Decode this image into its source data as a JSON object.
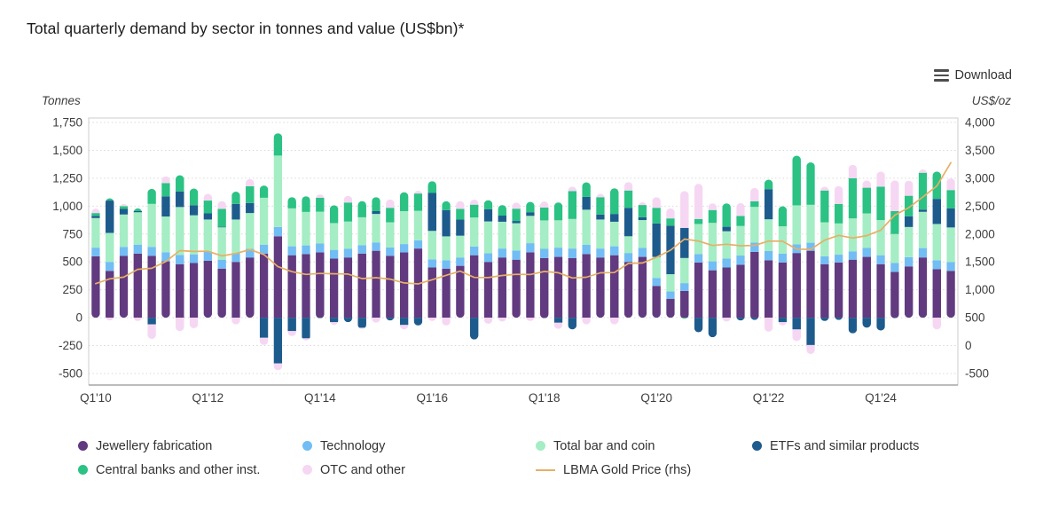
{
  "title": "Total quarterly demand by sector in tonnes and value (US$bn)*",
  "download_label": "Download",
  "axes": {
    "left_title": "Tonnes",
    "right_title": "US$/oz",
    "left_ticks": [
      "1,750",
      "1,500",
      "1,250",
      "1,000",
      "750",
      "500",
      "250",
      "0",
      "-250",
      "-500"
    ],
    "right_ticks": [
      "4,000",
      "3,500",
      "3,000",
      "2,500",
      "2,000",
      "1,500",
      "1,000",
      "500",
      "0",
      "-500"
    ],
    "x_tick_labels": [
      "Q1'10",
      "Q1'12",
      "Q1'14",
      "Q1'16",
      "Q1'18",
      "Q1'20",
      "Q1'22",
      "Q1'24"
    ],
    "x_tick_indices": [
      0,
      8,
      16,
      24,
      32,
      40,
      48,
      56
    ]
  },
  "chart_data": {
    "type": "bar",
    "subtype": "stacked-bars-with-line-overlay",
    "title": "Total quarterly demand by sector in tonnes and value (US$bn)*",
    "xlabel": "",
    "ylabel_left": "Tonnes",
    "ylabel_right": "US$/oz",
    "ylim_left": [
      -500,
      1750
    ],
    "ylim_right": [
      -500,
      4000
    ],
    "grid": "dotted-horizontal",
    "legend_position": "bottom",
    "categories": [
      "Q1'10",
      "Q2'10",
      "Q3'10",
      "Q4'10",
      "Q1'11",
      "Q2'11",
      "Q3'11",
      "Q4'11",
      "Q1'12",
      "Q2'12",
      "Q3'12",
      "Q4'12",
      "Q1'13",
      "Q2'13",
      "Q3'13",
      "Q4'13",
      "Q1'14",
      "Q2'14",
      "Q3'14",
      "Q4'14",
      "Q1'15",
      "Q2'15",
      "Q3'15",
      "Q4'15",
      "Q1'16",
      "Q2'16",
      "Q3'16",
      "Q4'16",
      "Q1'17",
      "Q2'17",
      "Q3'17",
      "Q4'17",
      "Q1'18",
      "Q2'18",
      "Q3'18",
      "Q4'18",
      "Q1'19",
      "Q2'19",
      "Q3'19",
      "Q4'19",
      "Q1'20",
      "Q2'20",
      "Q3'20",
      "Q4'20",
      "Q1'21",
      "Q2'21",
      "Q3'21",
      "Q4'21",
      "Q1'22",
      "Q2'22",
      "Q3'22",
      "Q4'22",
      "Q1'23",
      "Q2'23",
      "Q3'23",
      "Q4'23",
      "Q1'24",
      "Q2'24",
      "Q3'24",
      "Q4'24",
      "Q1'25",
      "Q2'25"
    ],
    "series": [
      {
        "key": "jewellery",
        "name": "Jewellery fabrication",
        "type": "bar",
        "color": "#613a80",
        "values": [
          550,
          420,
          555,
          575,
          555,
          505,
          480,
          490,
          510,
          440,
          500,
          540,
          575,
          730,
          560,
          570,
          585,
          530,
          540,
          575,
          600,
          555,
          585,
          620,
          450,
          440,
          465,
          560,
          500,
          540,
          520,
          585,
          535,
          545,
          535,
          570,
          540,
          560,
          500,
          545,
          285,
          170,
          240,
          495,
          425,
          450,
          475,
          590,
          515,
          495,
          580,
          600,
          480,
          495,
          520,
          545,
          480,
          410,
          460,
          540,
          435,
          420
        ]
      },
      {
        "key": "technology",
        "name": "Technology",
        "type": "bar",
        "color": "#72bdf4",
        "values": [
          78,
          80,
          80,
          80,
          80,
          82,
          82,
          78,
          80,
          80,
          80,
          78,
          80,
          83,
          80,
          78,
          80,
          78,
          77,
          75,
          75,
          75,
          75,
          73,
          73,
          74,
          75,
          78,
          78,
          80,
          82,
          83,
          82,
          83,
          85,
          83,
          80,
          80,
          80,
          80,
          70,
          65,
          70,
          75,
          80,
          80,
          82,
          83,
          82,
          79,
          77,
          72,
          70,
          70,
          75,
          80,
          80,
          80,
          83,
          84,
          80,
          79
        ]
      },
      {
        "key": "barcoin",
        "name": "Total bar and coin",
        "type": "bar",
        "color": "#a5edc4",
        "values": [
          265,
          260,
          290,
          290,
          385,
          320,
          430,
          350,
          290,
          290,
          300,
          320,
          420,
          640,
          340,
          300,
          285,
          240,
          245,
          250,
          255,
          225,
          295,
          265,
          255,
          215,
          195,
          260,
          285,
          240,
          245,
          245,
          255,
          245,
          265,
          315,
          260,
          220,
          150,
          250,
          190,
          155,
          225,
          270,
          345,
          245,
          265,
          320,
          285,
          245,
          350,
          340,
          305,
          280,
          295,
          310,
          315,
          260,
          270,
          325,
          325,
          310
        ]
      },
      {
        "key": "etf",
        "name": "ETFs and similar products",
        "type": "bar",
        "color": "#1e5b8d",
        "values": [
          20,
          290,
          50,
          10,
          -60,
          180,
          140,
          90,
          55,
          5,
          140,
          90,
          -180,
          -410,
          -120,
          -185,
          -5,
          -40,
          -40,
          -90,
          25,
          -25,
          -65,
          -70,
          340,
          235,
          145,
          -195,
          110,
          55,
          20,
          30,
          -5,
          -45,
          -105,
          115,
          45,
          70,
          255,
          25,
          300,
          435,
          270,
          -130,
          -175,
          40,
          -25,
          -20,
          270,
          -40,
          -105,
          -245,
          -30,
          -20,
          -140,
          -90,
          -115,
          -5,
          95,
          20,
          225,
          170
        ]
      },
      {
        "key": "centralbanks",
        "name": "Central banks and other inst.",
        "type": "bar",
        "color": "#2bc284",
        "values": [
          25,
          20,
          25,
          25,
          135,
          120,
          145,
          150,
          115,
          160,
          110,
          150,
          110,
          200,
          100,
          140,
          125,
          160,
          170,
          145,
          125,
          130,
          170,
          155,
          105,
          80,
          95,
          115,
          80,
          95,
          110,
          95,
          115,
          160,
          250,
          130,
          155,
          230,
          155,
          110,
          140,
          65,
          -10,
          45,
          115,
          210,
          90,
          50,
          85,
          180,
          445,
          380,
          285,
          175,
          360,
          230,
          300,
          205,
          185,
          330,
          245,
          165
        ]
      },
      {
        "key": "otc",
        "name": "OTC and other",
        "type": "bar",
        "color": "#f6d7f3",
        "values": [
          40,
          -25,
          20,
          -30,
          -130,
          60,
          -120,
          -95,
          60,
          70,
          -60,
          65,
          -65,
          -60,
          -45,
          -20,
          30,
          -25,
          60,
          -10,
          -45,
          75,
          -40,
          25,
          -30,
          -70,
          70,
          45,
          -55,
          -35,
          55,
          -30,
          55,
          -55,
          40,
          -60,
          30,
          -60,
          75,
          25,
          95,
          90,
          330,
          315,
          60,
          -35,
          115,
          120,
          -125,
          -30,
          -105,
          -80,
          35,
          160,
          120,
          65,
          135,
          275,
          135,
          30,
          -105,
          105
        ]
      },
      {
        "key": "price",
        "name": "LBMA Gold Price (rhs)",
        "type": "line",
        "axis": "right",
        "color": "#e6b066",
        "values": [
          1110,
          1197,
          1227,
          1367,
          1386,
          1506,
          1702,
          1688,
          1691,
          1609,
          1652,
          1722,
          1632,
          1415,
          1326,
          1276,
          1294,
          1288,
          1282,
          1201,
          1218,
          1192,
          1124,
          1106,
          1181,
          1260,
          1335,
          1222,
          1219,
          1257,
          1278,
          1275,
          1329,
          1306,
          1213,
          1226,
          1304,
          1309,
          1472,
          1481,
          1583,
          1711,
          1909,
          1874,
          1794,
          1816,
          1790,
          1795,
          1874,
          1871,
          1729,
          1725,
          1890,
          1976,
          1928,
          1971,
          2070,
          2338,
          2474,
          2663,
          2860,
          3280
        ]
      }
    ]
  },
  "legend": {
    "rows": [
      [
        "jewellery",
        "technology",
        "barcoin",
        "etf"
      ],
      [
        "centralbanks",
        "otc",
        "price"
      ]
    ]
  },
  "colors": {
    "grid": "#d9d9d9",
    "frame": "#cccccc",
    "axis_line": "#a6a6a6",
    "tick_text": "#3d3d3d"
  }
}
